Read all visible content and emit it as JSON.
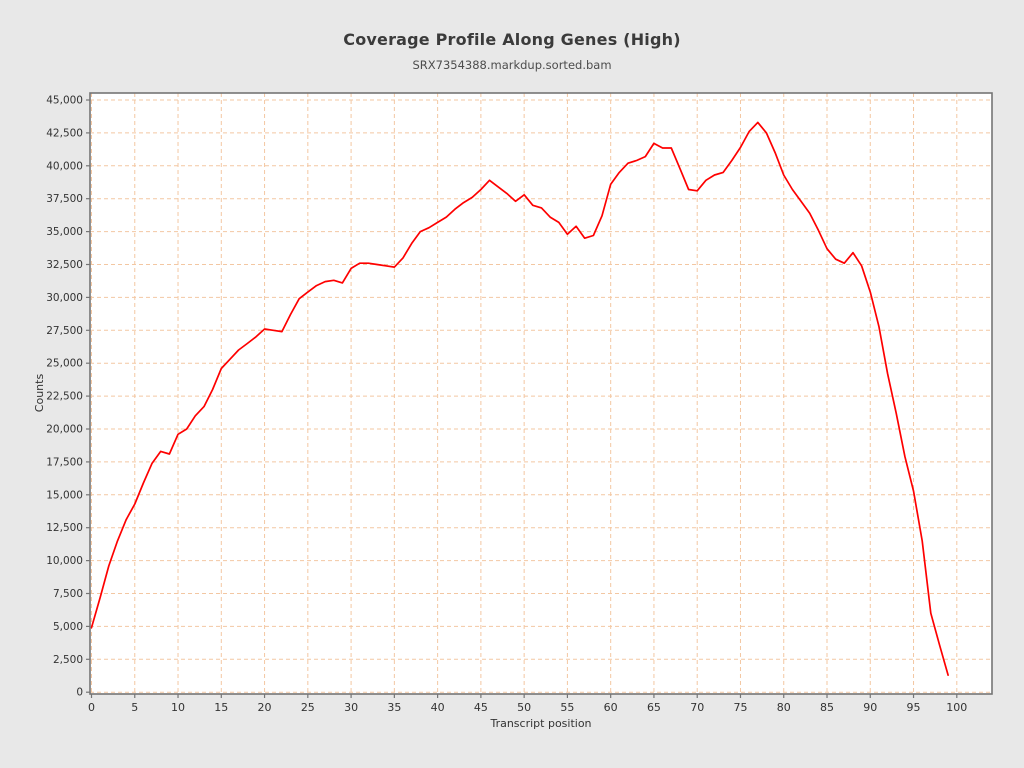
{
  "header": {
    "title": "Coverage Profile Along Genes (High)",
    "subtitle": "SRX7354388.markdup.sorted.bam"
  },
  "chart_data": {
    "type": "line",
    "title": "Coverage Profile Along Genes (High)",
    "subtitle": "SRX7354388.markdup.sorted.bam",
    "xlabel": "Transcript position",
    "ylabel": "Counts",
    "xlim": [
      0,
      100
    ],
    "ylim": [
      0,
      45000
    ],
    "x_ticks": [
      0,
      5,
      10,
      15,
      20,
      25,
      30,
      35,
      40,
      45,
      50,
      55,
      60,
      65,
      70,
      75,
      80,
      85,
      90,
      95,
      100
    ],
    "y_ticks": [
      0,
      2500,
      5000,
      7500,
      10000,
      12500,
      15000,
      17500,
      20000,
      22500,
      25000,
      27500,
      30000,
      32500,
      35000,
      37500,
      40000,
      42500,
      45000
    ],
    "grid": true,
    "legend_position": "none",
    "colors": {
      "line": "#fe0000",
      "grid": "#f3c7a2",
      "plot_background": "#ffffff",
      "figure_background": "#e8e8e8",
      "border": "#757575",
      "tick_text": "#333333"
    },
    "series": [
      {
        "name": "SRX7354388.markdup.sorted.bam",
        "x": [
          0,
          1,
          2,
          3,
          4,
          5,
          6,
          7,
          8,
          9,
          10,
          11,
          12,
          13,
          14,
          15,
          16,
          17,
          18,
          19,
          20,
          21,
          22,
          23,
          24,
          25,
          26,
          27,
          28,
          29,
          30,
          31,
          32,
          33,
          34,
          35,
          36,
          37,
          38,
          39,
          40,
          41,
          42,
          43,
          44,
          45,
          46,
          47,
          48,
          49,
          50,
          51,
          52,
          53,
          54,
          55,
          56,
          57,
          58,
          59,
          60,
          61,
          62,
          63,
          64,
          65,
          66,
          67,
          68,
          69,
          70,
          71,
          72,
          73,
          74,
          75,
          76,
          77,
          78,
          79,
          80,
          81,
          82,
          83,
          84,
          85,
          86,
          87,
          88,
          89,
          90,
          91,
          92,
          93,
          94,
          95,
          96,
          97,
          98,
          99
        ],
        "y": [
          4900,
          7200,
          9600,
          11500,
          13100,
          14300,
          15900,
          17400,
          18300,
          18100,
          19600,
          20000,
          21000,
          21700,
          23000,
          24600,
          25300,
          26000,
          26500,
          27000,
          27600,
          27500,
          27400,
          28700,
          29900,
          30400,
          30900,
          31200,
          31300,
          31100,
          32200,
          32600,
          32600,
          32500,
          32400,
          32300,
          33000,
          34100,
          35000,
          35300,
          35700,
          36100,
          36700,
          37200,
          37600,
          38200,
          38900,
          38400,
          37900,
          37300,
          37800,
          37000,
          36800,
          36100,
          35700,
          34800,
          35400,
          34500,
          34700,
          36200,
          38600,
          39500,
          40200,
          40400,
          40700,
          41700,
          41350,
          41350,
          39800,
          38200,
          38100,
          38900,
          39300,
          39500,
          40400,
          41400,
          42600,
          43300,
          42500,
          41000,
          39300,
          38200,
          37300,
          36400,
          35100,
          33700,
          32900,
          32600,
          33400,
          32400,
          30400,
          27800,
          24200,
          21200,
          17900,
          15300,
          11500,
          6000,
          3600,
          1300
        ]
      }
    ]
  }
}
